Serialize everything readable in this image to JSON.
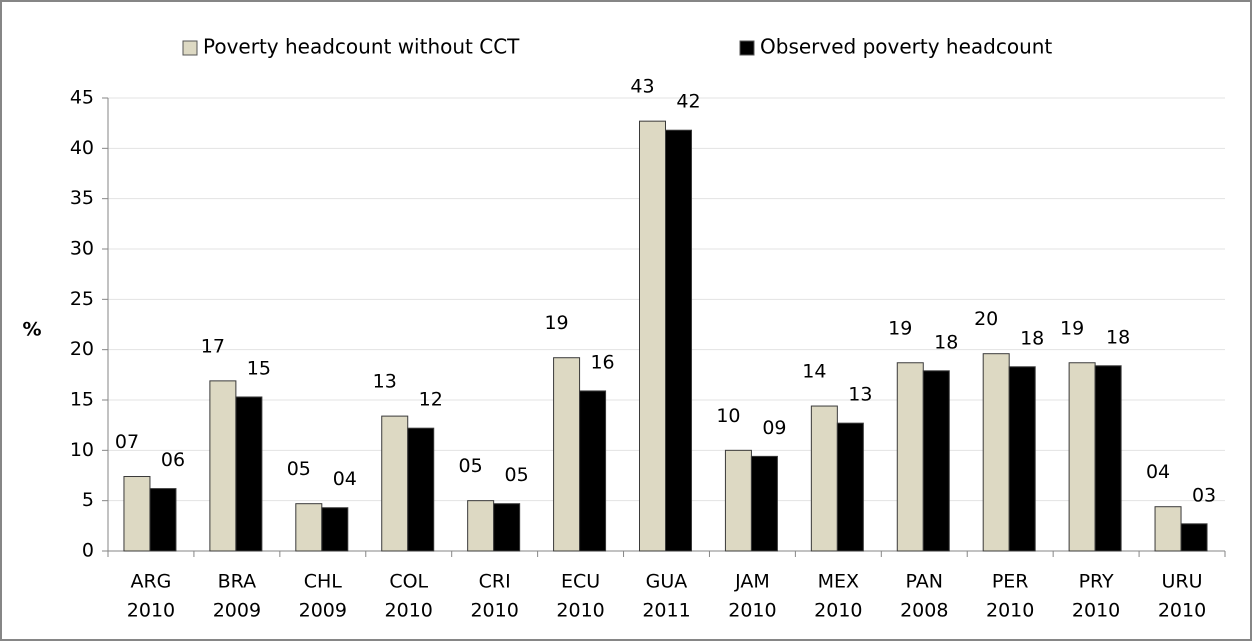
{
  "chart_data": {
    "type": "bar",
    "y_label": "%",
    "categories": [
      [
        "ARG",
        "2010"
      ],
      [
        "BRA",
        "2009"
      ],
      [
        "CHL",
        "2009"
      ],
      [
        "COL",
        "2010"
      ],
      [
        "CRI",
        "2010"
      ],
      [
        "ECU",
        "2010"
      ],
      [
        "GUA",
        "2011"
      ],
      [
        "JAM",
        "2010"
      ],
      [
        "MEX",
        "2010"
      ],
      [
        "PAN",
        "2008"
      ],
      [
        "PER",
        "2010"
      ],
      [
        "PRY",
        "2010"
      ],
      [
        "URU",
        "2010"
      ]
    ],
    "series": [
      {
        "name": "Poverty headcount without CCT",
        "color": "#ddd9c3",
        "values": [
          7.4,
          16.9,
          4.7,
          13.4,
          5.0,
          19.2,
          42.7,
          10.0,
          14.4,
          18.7,
          19.6,
          18.7,
          4.4
        ],
        "value_labels": [
          "07",
          "17",
          "05",
          "13",
          "05",
          "19",
          "43",
          "10",
          "14",
          "19",
          "20",
          "19",
          "04"
        ]
      },
      {
        "name": "Observed poverty headcount",
        "color": "#000000",
        "values": [
          6.2,
          15.3,
          4.3,
          12.2,
          4.7,
          15.9,
          41.8,
          9.4,
          12.7,
          17.9,
          18.3,
          18.4,
          2.7
        ],
        "value_labels": [
          "06",
          "15",
          "04",
          "12",
          "05",
          "16",
          "42",
          "09",
          "13",
          "18",
          "18",
          "18",
          "03"
        ]
      }
    ],
    "ylim": [
      0,
      45
    ],
    "yticks": [
      0,
      5,
      10,
      15,
      20,
      25,
      30,
      35,
      40,
      45
    ],
    "grid": true,
    "legend": "top"
  }
}
